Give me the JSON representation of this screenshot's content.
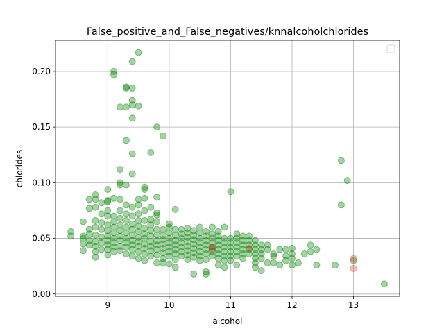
{
  "chart_data": {
    "type": "scatter",
    "title": "False_positive_and_False_negatives/knnalcoholchlorides",
    "xlabel": "alcohol",
    "ylabel": "chlorides",
    "xlim": [
      8.15,
      13.75
    ],
    "ylim": [
      -0.002,
      0.228
    ],
    "xticks": [
      9,
      10,
      11,
      12,
      13
    ],
    "yticks": [
      0.0,
      0.05,
      0.1,
      0.15,
      0.2
    ],
    "xtick_labels": [
      "9",
      "10",
      "11",
      "12",
      "13"
    ],
    "ytick_labels": [
      "0.00",
      "0.05",
      "0.10",
      "0.15",
      "0.20"
    ],
    "grid": true,
    "legend": "top-right (empty)",
    "colors": {
      "correct": "#008000",
      "false_positive": "#e8503a",
      "false_negative": "#8b4513",
      "grid": "#b0b0b0"
    },
    "series": [
      {
        "key": "correct",
        "color": "#008000",
        "points": [
          [
            8.4,
            0.056
          ],
          [
            8.4,
            0.052
          ],
          [
            8.6,
            0.065
          ],
          [
            8.6,
            0.052
          ],
          [
            8.6,
            0.05
          ],
          [
            8.6,
            0.045
          ],
          [
            8.6,
            0.039
          ],
          [
            8.7,
            0.085
          ],
          [
            8.7,
            0.077
          ],
          [
            8.7,
            0.058
          ],
          [
            8.7,
            0.054
          ],
          [
            8.7,
            0.048
          ],
          [
            8.7,
            0.044
          ],
          [
            8.8,
            0.089
          ],
          [
            8.8,
            0.085
          ],
          [
            8.8,
            0.078
          ],
          [
            8.8,
            0.066
          ],
          [
            8.8,
            0.06
          ],
          [
            8.8,
            0.053
          ],
          [
            8.8,
            0.047
          ],
          [
            8.8,
            0.043
          ],
          [
            8.8,
            0.038
          ],
          [
            8.8,
            0.033
          ],
          [
            8.9,
            0.082
          ],
          [
            8.9,
            0.072
          ],
          [
            8.9,
            0.064
          ],
          [
            8.9,
            0.058
          ],
          [
            8.9,
            0.051
          ],
          [
            8.9,
            0.046
          ],
          [
            8.9,
            0.04
          ],
          [
            9.0,
            0.094
          ],
          [
            9.0,
            0.084
          ],
          [
            9.0,
            0.083
          ],
          [
            9.0,
            0.075
          ],
          [
            9.0,
            0.07
          ],
          [
            9.0,
            0.062
          ],
          [
            9.0,
            0.057
          ],
          [
            9.0,
            0.052
          ],
          [
            9.0,
            0.048
          ],
          [
            9.0,
            0.044
          ],
          [
            9.0,
            0.04
          ],
          [
            9.0,
            0.035
          ],
          [
            9.1,
            0.2
          ],
          [
            9.1,
            0.197
          ],
          [
            9.1,
            0.086
          ],
          [
            9.1,
            0.07
          ],
          [
            9.1,
            0.065
          ],
          [
            9.1,
            0.06
          ],
          [
            9.1,
            0.055
          ],
          [
            9.1,
            0.05
          ],
          [
            9.1,
            0.046
          ],
          [
            9.1,
            0.042
          ],
          [
            9.1,
            0.038
          ],
          [
            9.2,
            0.168
          ],
          [
            9.2,
            0.112
          ],
          [
            9.2,
            0.1
          ],
          [
            9.2,
            0.098
          ],
          [
            9.2,
            0.085
          ],
          [
            9.2,
            0.075
          ],
          [
            9.2,
            0.068
          ],
          [
            9.2,
            0.062
          ],
          [
            9.2,
            0.057
          ],
          [
            9.2,
            0.052
          ],
          [
            9.2,
            0.048
          ],
          [
            9.2,
            0.043
          ],
          [
            9.2,
            0.039
          ],
          [
            9.3,
            0.186
          ],
          [
            9.3,
            0.185
          ],
          [
            9.3,
            0.168
          ],
          [
            9.3,
            0.138
          ],
          [
            9.3,
            0.098
          ],
          [
            9.3,
            0.08
          ],
          [
            9.3,
            0.072
          ],
          [
            9.3,
            0.066
          ],
          [
            9.3,
            0.06
          ],
          [
            9.3,
            0.055
          ],
          [
            9.3,
            0.05
          ],
          [
            9.3,
            0.046
          ],
          [
            9.3,
            0.042
          ],
          [
            9.3,
            0.036
          ],
          [
            9.4,
            0.209
          ],
          [
            9.4,
            0.185
          ],
          [
            9.4,
            0.174
          ],
          [
            9.4,
            0.17
          ],
          [
            9.4,
            0.158
          ],
          [
            9.4,
            0.126
          ],
          [
            9.4,
            0.108
          ],
          [
            9.4,
            0.078
          ],
          [
            9.4,
            0.07
          ],
          [
            9.4,
            0.063
          ],
          [
            9.4,
            0.058
          ],
          [
            9.4,
            0.053
          ],
          [
            9.4,
            0.048
          ],
          [
            9.4,
            0.044
          ],
          [
            9.4,
            0.04
          ],
          [
            9.4,
            0.034
          ],
          [
            9.5,
            0.217
          ],
          [
            9.5,
            0.169
          ],
          [
            9.5,
            0.085
          ],
          [
            9.5,
            0.08
          ],
          [
            9.5,
            0.072
          ],
          [
            9.5,
            0.066
          ],
          [
            9.5,
            0.061
          ],
          [
            9.5,
            0.056
          ],
          [
            9.5,
            0.051
          ],
          [
            9.5,
            0.047
          ],
          [
            9.5,
            0.043
          ],
          [
            9.5,
            0.038
          ],
          [
            9.5,
            0.032
          ],
          [
            9.6,
            0.096
          ],
          [
            9.6,
            0.094
          ],
          [
            9.6,
            0.086
          ],
          [
            9.6,
            0.075
          ],
          [
            9.6,
            0.066
          ],
          [
            9.6,
            0.059
          ],
          [
            9.6,
            0.054
          ],
          [
            9.6,
            0.05
          ],
          [
            9.6,
            0.045
          ],
          [
            9.6,
            0.041
          ],
          [
            9.6,
            0.036
          ],
          [
            9.6,
            0.03
          ],
          [
            9.7,
            0.127
          ],
          [
            9.7,
            0.078
          ],
          [
            9.7,
            0.067
          ],
          [
            9.7,
            0.062
          ],
          [
            9.7,
            0.057
          ],
          [
            9.7,
            0.052
          ],
          [
            9.7,
            0.047
          ],
          [
            9.7,
            0.043
          ],
          [
            9.7,
            0.039
          ],
          [
            9.7,
            0.034
          ],
          [
            9.8,
            0.15
          ],
          [
            9.8,
            0.087
          ],
          [
            9.8,
            0.073
          ],
          [
            9.8,
            0.071
          ],
          [
            9.8,
            0.065
          ],
          [
            9.8,
            0.058
          ],
          [
            9.8,
            0.053
          ],
          [
            9.8,
            0.048
          ],
          [
            9.8,
            0.044
          ],
          [
            9.8,
            0.04
          ],
          [
            9.8,
            0.035
          ],
          [
            9.8,
            0.028
          ],
          [
            9.9,
            0.142
          ],
          [
            9.9,
            0.058
          ],
          [
            9.9,
            0.053
          ],
          [
            9.9,
            0.049
          ],
          [
            9.9,
            0.045
          ],
          [
            9.9,
            0.041
          ],
          [
            9.9,
            0.037
          ],
          [
            9.9,
            0.032
          ],
          [
            9.9,
            0.028
          ],
          [
            10.0,
            0.063
          ],
          [
            10.0,
            0.06
          ],
          [
            10.0,
            0.055
          ],
          [
            10.0,
            0.05
          ],
          [
            10.0,
            0.046
          ],
          [
            10.0,
            0.042
          ],
          [
            10.0,
            0.038
          ],
          [
            10.0,
            0.034
          ],
          [
            10.0,
            0.027
          ],
          [
            10.1,
            0.076
          ],
          [
            10.1,
            0.058
          ],
          [
            10.1,
            0.053
          ],
          [
            10.1,
            0.048
          ],
          [
            10.1,
            0.044
          ],
          [
            10.1,
            0.04
          ],
          [
            10.1,
            0.036
          ],
          [
            10.1,
            0.031
          ],
          [
            10.1,
            0.024
          ],
          [
            10.2,
            0.058
          ],
          [
            10.2,
            0.054
          ],
          [
            10.2,
            0.05
          ],
          [
            10.2,
            0.046
          ],
          [
            10.2,
            0.042
          ],
          [
            10.2,
            0.038
          ],
          [
            10.2,
            0.034
          ],
          [
            10.3,
            0.059
          ],
          [
            10.3,
            0.055
          ],
          [
            10.3,
            0.051
          ],
          [
            10.3,
            0.047
          ],
          [
            10.3,
            0.043
          ],
          [
            10.3,
            0.039
          ],
          [
            10.3,
            0.035
          ],
          [
            10.3,
            0.031
          ],
          [
            10.4,
            0.057
          ],
          [
            10.4,
            0.053
          ],
          [
            10.4,
            0.049
          ],
          [
            10.4,
            0.045
          ],
          [
            10.4,
            0.041
          ],
          [
            10.4,
            0.037
          ],
          [
            10.4,
            0.033
          ],
          [
            10.4,
            0.018
          ],
          [
            10.5,
            0.06
          ],
          [
            10.5,
            0.055
          ],
          [
            10.5,
            0.05
          ],
          [
            10.5,
            0.046
          ],
          [
            10.5,
            0.042
          ],
          [
            10.5,
            0.038
          ],
          [
            10.5,
            0.034
          ],
          [
            10.5,
            0.03
          ],
          [
            10.6,
            0.056
          ],
          [
            10.6,
            0.052
          ],
          [
            10.6,
            0.048
          ],
          [
            10.6,
            0.044
          ],
          [
            10.6,
            0.04
          ],
          [
            10.6,
            0.036
          ],
          [
            10.6,
            0.031
          ],
          [
            10.6,
            0.02
          ],
          [
            10.6,
            0.018
          ],
          [
            10.7,
            0.06
          ],
          [
            10.7,
            0.054
          ],
          [
            10.7,
            0.05
          ],
          [
            10.7,
            0.046
          ],
          [
            10.7,
            0.042
          ],
          [
            10.7,
            0.038
          ],
          [
            10.7,
            0.034
          ],
          [
            10.8,
            0.056
          ],
          [
            10.8,
            0.052
          ],
          [
            10.8,
            0.048
          ],
          [
            10.8,
            0.044
          ],
          [
            10.8,
            0.04
          ],
          [
            10.8,
            0.036
          ],
          [
            10.8,
            0.032
          ],
          [
            10.8,
            0.026
          ],
          [
            10.9,
            0.06
          ],
          [
            10.9,
            0.05
          ],
          [
            10.9,
            0.046
          ],
          [
            10.9,
            0.042
          ],
          [
            10.9,
            0.038
          ],
          [
            10.9,
            0.034
          ],
          [
            10.9,
            0.03
          ],
          [
            10.9,
            0.024
          ],
          [
            11.0,
            0.092
          ],
          [
            11.0,
            0.05
          ],
          [
            11.0,
            0.046
          ],
          [
            11.0,
            0.042
          ],
          [
            11.0,
            0.038
          ],
          [
            11.0,
            0.034
          ],
          [
            11.0,
            0.03
          ],
          [
            11.1,
            0.054
          ],
          [
            11.1,
            0.05
          ],
          [
            11.1,
            0.046
          ],
          [
            11.1,
            0.042
          ],
          [
            11.1,
            0.038
          ],
          [
            11.1,
            0.034
          ],
          [
            11.1,
            0.026
          ],
          [
            11.2,
            0.052
          ],
          [
            11.2,
            0.048
          ],
          [
            11.2,
            0.044
          ],
          [
            11.2,
            0.04
          ],
          [
            11.2,
            0.036
          ],
          [
            11.2,
            0.032
          ],
          [
            11.3,
            0.052
          ],
          [
            11.3,
            0.048
          ],
          [
            11.3,
            0.044
          ],
          [
            11.3,
            0.04
          ],
          [
            11.3,
            0.036
          ],
          [
            11.4,
            0.048
          ],
          [
            11.4,
            0.044
          ],
          [
            11.4,
            0.04
          ],
          [
            11.4,
            0.036
          ],
          [
            11.4,
            0.032
          ],
          [
            11.4,
            0.028
          ],
          [
            11.4,
            0.024
          ],
          [
            11.5,
            0.044
          ],
          [
            11.5,
            0.04
          ],
          [
            11.5,
            0.036
          ],
          [
            11.5,
            0.032
          ],
          [
            11.5,
            0.021
          ],
          [
            11.6,
            0.044
          ],
          [
            11.6,
            0.04
          ],
          [
            11.6,
            0.028
          ],
          [
            11.7,
            0.036
          ],
          [
            11.7,
            0.034
          ],
          [
            11.7,
            0.028
          ],
          [
            11.8,
            0.04
          ],
          [
            11.8,
            0.026
          ],
          [
            11.9,
            0.04
          ],
          [
            11.9,
            0.034
          ],
          [
            11.9,
            0.03
          ],
          [
            12.0,
            0.041
          ],
          [
            12.0,
            0.036
          ],
          [
            12.0,
            0.032
          ],
          [
            12.0,
            0.026
          ],
          [
            12.1,
            0.028
          ],
          [
            12.2,
            0.036
          ],
          [
            12.3,
            0.044
          ],
          [
            12.3,
            0.038
          ],
          [
            12.4,
            0.04
          ],
          [
            12.4,
            0.026
          ],
          [
            12.7,
            0.026
          ],
          [
            12.8,
            0.12
          ],
          [
            12.8,
            0.08
          ],
          [
            12.9,
            0.102
          ],
          [
            13.0,
            0.03
          ],
          [
            13.5,
            0.009
          ]
        ]
      },
      {
        "key": "false_negative",
        "color": "#8b4513",
        "points": [
          [
            10.7,
            0.042
          ],
          [
            10.7,
            0.04
          ],
          [
            11.3,
            0.041
          ]
        ]
      },
      {
        "key": "false_positive",
        "color": "#e8503a",
        "points": [
          [
            13.0,
            0.032
          ],
          [
            13.0,
            0.023
          ]
        ]
      }
    ]
  }
}
